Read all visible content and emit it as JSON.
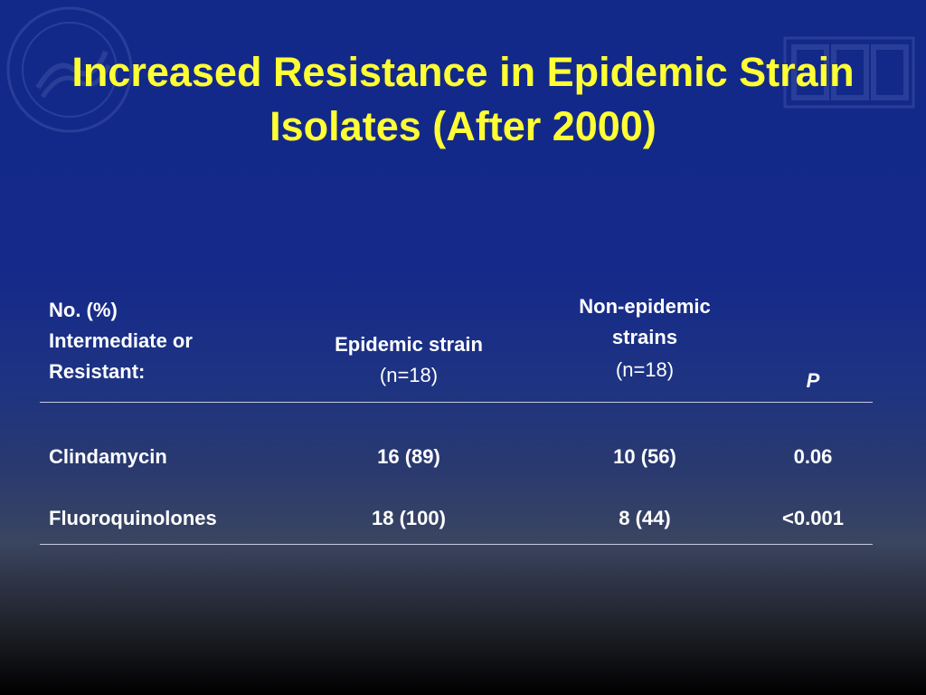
{
  "slide": {
    "title_line1": "Increased Resistance in Epidemic Strain",
    "title_line2": "Isolates (After 2000)"
  },
  "table": {
    "header": {
      "col1_lines": [
        "No. (%)",
        "Intermediate or",
        "Resistant:"
      ],
      "col2_label": "Epidemic strain",
      "col2_sub": "(n=18)",
      "col3_lines": [
        "Non-epidemic",
        "strains"
      ],
      "col3_sub": "(n=18)",
      "col4_label": "P"
    },
    "rows": [
      {
        "drug": "Clindamycin",
        "epidemic": "16 (89)",
        "non_epidemic": "10 (56)",
        "p": "0.06"
      },
      {
        "drug": "Fluoroquinolones",
        "epidemic": "18 (100)",
        "non_epidemic": "8 (44)",
        "p": "<0.001"
      }
    ]
  },
  "colors": {
    "title": "#ffff33",
    "text": "#ffffff",
    "background_top": "#12298a",
    "background_bottom": "#000000"
  }
}
